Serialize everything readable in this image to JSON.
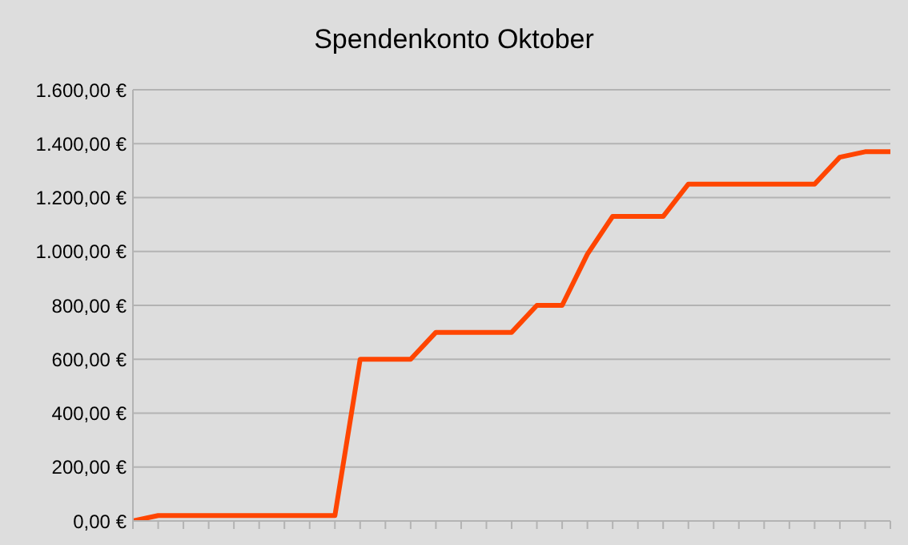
{
  "chart_data": {
    "type": "line",
    "title": "Spendenkonto Oktober",
    "categories": [
      null,
      null,
      null,
      null,
      null,
      null,
      null,
      null,
      null,
      null,
      null,
      null,
      null,
      null,
      null,
      null,
      null,
      null,
      null,
      null,
      null,
      null,
      null,
      null,
      null,
      null,
      null,
      null,
      null,
      null,
      null
    ],
    "series": [
      {
        "color": "#ff4500",
        "values": [
          0,
          20,
          20,
          20,
          20,
          20,
          20,
          20,
          20,
          600,
          600,
          600,
          700,
          700,
          700,
          700,
          800,
          800,
          990,
          1130,
          1130,
          1130,
          1250,
          1250,
          1250,
          1250,
          1250,
          1250,
          1350,
          1370,
          1370
        ]
      }
    ],
    "ylim": [
      0,
      1600
    ],
    "yticks": [
      {
        "value": 0,
        "label": "0,00 €"
      },
      {
        "value": 200,
        "label": "200,00 €"
      },
      {
        "value": 400,
        "label": "400,00 €"
      },
      {
        "value": 600,
        "label": "600,00 €"
      },
      {
        "value": 800,
        "label": "800,00 €"
      },
      {
        "value": 1000,
        "label": "1.000,00 €"
      },
      {
        "value": 1200,
        "label": "1.200,00 €"
      },
      {
        "value": 1400,
        "label": "1.400,00 €"
      },
      {
        "value": 1600,
        "label": "1.600,00 €"
      }
    ],
    "grid": "y",
    "legend": false,
    "marker": "none",
    "line_style": "solid",
    "tick_labels": "y"
  }
}
